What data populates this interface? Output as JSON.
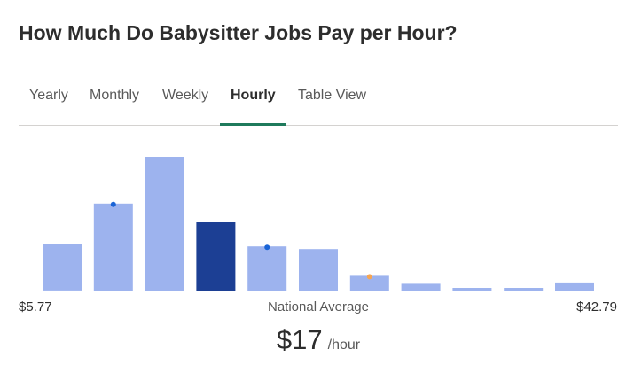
{
  "title": "How Much Do Babysitter Jobs Pay per Hour?",
  "tabs": [
    {
      "label": "Yearly",
      "active": false
    },
    {
      "label": "Monthly",
      "active": false
    },
    {
      "label": "Weekly",
      "active": false
    },
    {
      "label": "Hourly",
      "active": true
    },
    {
      "label": "Table View",
      "active": false
    }
  ],
  "chart_data": {
    "type": "bar",
    "x_min_label": "$5.77",
    "x_max_label": "$42.79",
    "center_label": "National Average",
    "values": [
      35,
      65,
      100,
      51,
      33,
      31,
      11,
      5,
      2,
      2,
      6
    ],
    "highlighted_index": 3,
    "markers": [
      {
        "bar": 1,
        "color": "#1a64d6"
      },
      {
        "bar": 4,
        "color": "#1a64d6"
      },
      {
        "bar": 6,
        "color": "#f5a553"
      }
    ],
    "colors": {
      "bar": "#9db3ee",
      "highlight": "#1c3f94"
    },
    "grid": false,
    "legend": "none"
  },
  "average": {
    "value": "$17",
    "unit": "/hour"
  }
}
